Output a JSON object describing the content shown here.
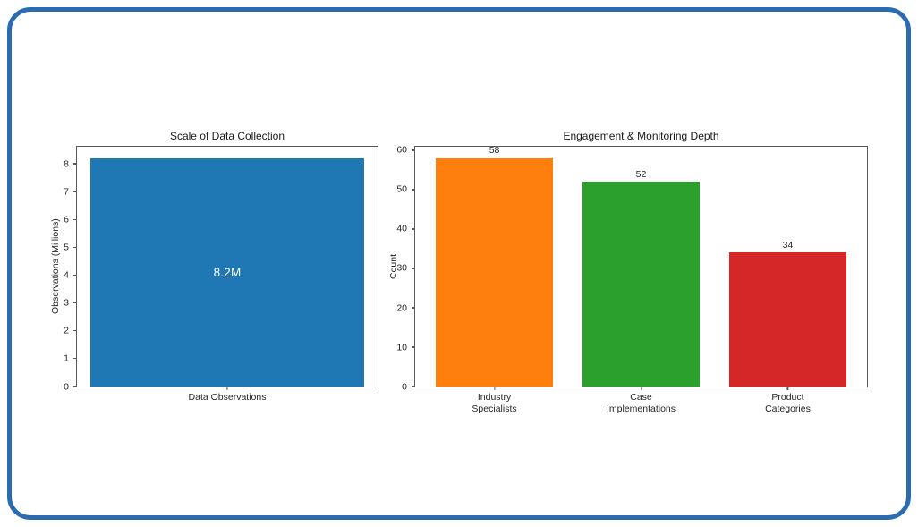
{
  "card": {
    "border_color": "#2b6cb0",
    "background": "#ffffff"
  },
  "chart_data": [
    {
      "type": "bar",
      "title": "Scale of Data Collection",
      "xlabel": "",
      "ylabel": "Observations (Millions)",
      "categories": [
        "Data Observations"
      ],
      "values": [
        8.2
      ],
      "bar_colors": [
        "#1f77b4"
      ],
      "bar_labels": [
        "8.2M"
      ],
      "bar_label_position": "inside",
      "bar_label_color": "#ffffff",
      "ylim": [
        0,
        8.61
      ],
      "yticks": [
        0,
        1,
        2,
        3,
        4,
        5,
        6,
        7,
        8
      ],
      "grid": false,
      "legend": null
    },
    {
      "type": "bar",
      "title": "Engagement & Monitoring Depth",
      "xlabel": "",
      "ylabel": "Count",
      "categories": [
        "Industry\nSpecialists",
        "Case\nImplementations",
        "Product\nCategories"
      ],
      "values": [
        58,
        52,
        34
      ],
      "bar_colors": [
        "#ff7f0e",
        "#2ca02c",
        "#d62728"
      ],
      "bar_labels": [
        "58",
        "52",
        "34"
      ],
      "bar_label_position": "above",
      "bar_label_color": "#262626",
      "ylim": [
        0,
        60.9
      ],
      "yticks": [
        0,
        10,
        20,
        30,
        40,
        50,
        60
      ],
      "grid": false,
      "legend": null
    }
  ]
}
